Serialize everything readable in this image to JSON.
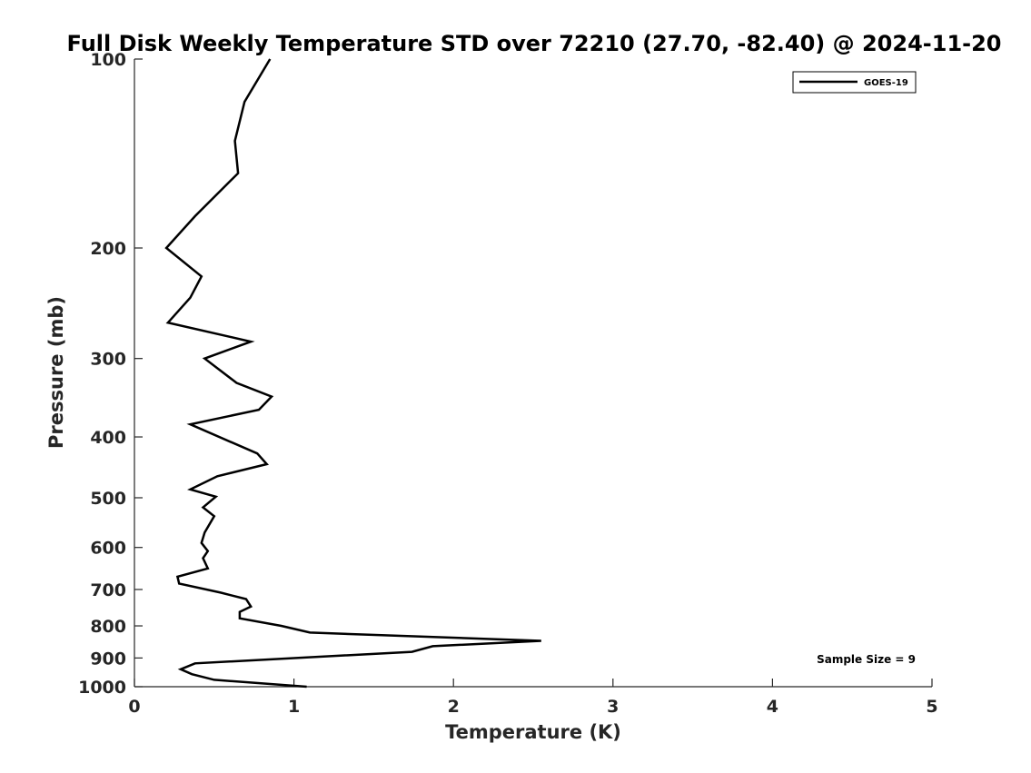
{
  "chart_data": {
    "type": "line",
    "title": "Full Disk Weekly Temperature STD over 72210 (27.70, -82.40) @ 2024-11-20",
    "xlabel": "Temperature (K)",
    "ylabel": "Pressure (mb)",
    "xlim": [
      0,
      5
    ],
    "ylim": [
      100,
      1000
    ],
    "y_scale": "log",
    "y_reversed": true,
    "x_ticks": [
      "0",
      "1",
      "2",
      "3",
      "4",
      "5"
    ],
    "y_ticks": [
      "100",
      "200",
      "300",
      "400",
      "500",
      "600",
      "700",
      "800",
      "900",
      "1000"
    ],
    "grid": false,
    "legend_position": "top-right",
    "annotation": "Sample Size = 9",
    "series": [
      {
        "name": "GOES-19",
        "color": "#000000",
        "points": [
          [
            0.85,
            100
          ],
          [
            0.69,
            117
          ],
          [
            0.63,
            135
          ],
          [
            0.65,
            152
          ],
          [
            0.38,
            178
          ],
          [
            0.2,
            200
          ],
          [
            0.42,
            222
          ],
          [
            0.35,
            240
          ],
          [
            0.21,
            263
          ],
          [
            0.73,
            282
          ],
          [
            0.44,
            300
          ],
          [
            0.64,
            328
          ],
          [
            0.86,
            345
          ],
          [
            0.78,
            362
          ],
          [
            0.35,
            382
          ],
          [
            0.77,
            425
          ],
          [
            0.83,
            442
          ],
          [
            0.52,
            462
          ],
          [
            0.35,
            485
          ],
          [
            0.51,
            498
          ],
          [
            0.43,
            518
          ],
          [
            0.5,
            535
          ],
          [
            0.44,
            568
          ],
          [
            0.42,
            590
          ],
          [
            0.46,
            608
          ],
          [
            0.43,
            624
          ],
          [
            0.46,
            648
          ],
          [
            0.27,
            668
          ],
          [
            0.28,
            685
          ],
          [
            0.54,
            708
          ],
          [
            0.7,
            725
          ],
          [
            0.73,
            745
          ],
          [
            0.66,
            760
          ],
          [
            0.66,
            778
          ],
          [
            0.92,
            800
          ],
          [
            1.1,
            820
          ],
          [
            2.55,
            845
          ],
          [
            1.87,
            862
          ],
          [
            1.74,
            880
          ],
          [
            0.38,
            918
          ],
          [
            0.29,
            938
          ],
          [
            0.36,
            955
          ],
          [
            0.5,
            975
          ],
          [
            1.08,
            1000
          ]
        ]
      }
    ]
  }
}
